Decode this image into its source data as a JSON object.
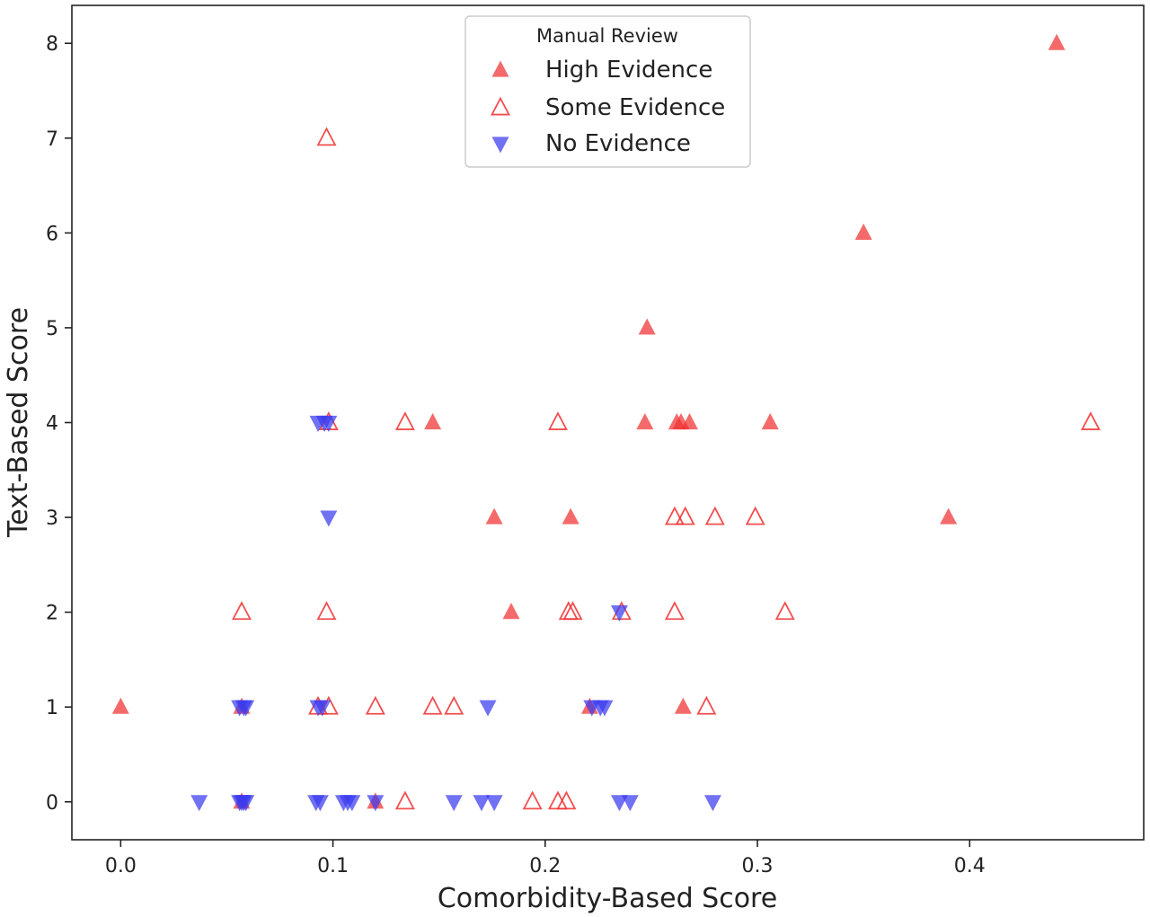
{
  "chart_data": {
    "type": "scatter",
    "xlabel": "Comorbidity-Based Score",
    "ylabel": "Text-Based Score",
    "xlim": [
      -0.023,
      0.482
    ],
    "ylim": [
      -0.4,
      8.4
    ],
    "xticks": [
      0.0,
      0.1,
      0.2,
      0.3,
      0.4
    ],
    "xtick_labels": [
      "0.0",
      "0.1",
      "0.2",
      "0.3",
      "0.4"
    ],
    "yticks": [
      0,
      1,
      2,
      3,
      4,
      5,
      6,
      7,
      8
    ],
    "ytick_labels": [
      "0",
      "1",
      "2",
      "3",
      "4",
      "5",
      "6",
      "7",
      "8"
    ],
    "grid": false,
    "legend": {
      "title": "Manual Review",
      "placement": "top-center"
    },
    "series": [
      {
        "name": "High Evidence",
        "marker": "triangle-up-filled",
        "color": "#f03030",
        "points": [
          [
            0.0,
            1
          ],
          [
            0.057,
            1
          ],
          [
            0.057,
            0
          ],
          [
            0.12,
            0
          ],
          [
            0.147,
            4
          ],
          [
            0.176,
            3
          ],
          [
            0.184,
            2
          ],
          [
            0.212,
            3
          ],
          [
            0.221,
            1
          ],
          [
            0.248,
            5
          ],
          [
            0.247,
            4
          ],
          [
            0.262,
            4
          ],
          [
            0.264,
            4
          ],
          [
            0.268,
            4
          ],
          [
            0.265,
            1
          ],
          [
            0.306,
            4
          ],
          [
            0.35,
            6
          ],
          [
            0.39,
            3
          ],
          [
            0.441,
            8
          ]
        ]
      },
      {
        "name": "Some Evidence",
        "marker": "triangle-up-open",
        "color": "#f03030",
        "points": [
          [
            0.097,
            7
          ],
          [
            0.098,
            4
          ],
          [
            0.134,
            4
          ],
          [
            0.206,
            4
          ],
          [
            0.457,
            4
          ],
          [
            0.261,
            3
          ],
          [
            0.266,
            3
          ],
          [
            0.28,
            3
          ],
          [
            0.299,
            3
          ],
          [
            0.057,
            2
          ],
          [
            0.097,
            2
          ],
          [
            0.211,
            2
          ],
          [
            0.213,
            2
          ],
          [
            0.236,
            2
          ],
          [
            0.261,
            2
          ],
          [
            0.313,
            2
          ],
          [
            0.093,
            1
          ],
          [
            0.098,
            1
          ],
          [
            0.12,
            1
          ],
          [
            0.147,
            1
          ],
          [
            0.157,
            1
          ],
          [
            0.276,
            1
          ],
          [
            0.134,
            0
          ],
          [
            0.194,
            0
          ],
          [
            0.206,
            0
          ],
          [
            0.21,
            0
          ]
        ]
      },
      {
        "name": "No Evidence",
        "marker": "triangle-down-filled",
        "color": "#3a3aee",
        "points": [
          [
            0.093,
            4
          ],
          [
            0.096,
            4
          ],
          [
            0.098,
            4
          ],
          [
            0.098,
            3
          ],
          [
            0.235,
            2
          ],
          [
            0.056,
            1
          ],
          [
            0.058,
            1
          ],
          [
            0.059,
            1
          ],
          [
            0.093,
            1
          ],
          [
            0.095,
            1
          ],
          [
            0.173,
            1
          ],
          [
            0.222,
            1
          ],
          [
            0.226,
            1
          ],
          [
            0.228,
            1
          ],
          [
            0.037,
            0
          ],
          [
            0.056,
            0
          ],
          [
            0.057,
            0
          ],
          [
            0.058,
            0
          ],
          [
            0.059,
            0
          ],
          [
            0.092,
            0
          ],
          [
            0.094,
            0
          ],
          [
            0.105,
            0
          ],
          [
            0.107,
            0
          ],
          [
            0.109,
            0
          ],
          [
            0.12,
            0
          ],
          [
            0.157,
            0
          ],
          [
            0.17,
            0
          ],
          [
            0.176,
            0
          ],
          [
            0.235,
            0
          ],
          [
            0.24,
            0
          ],
          [
            0.279,
            0
          ]
        ]
      }
    ]
  }
}
